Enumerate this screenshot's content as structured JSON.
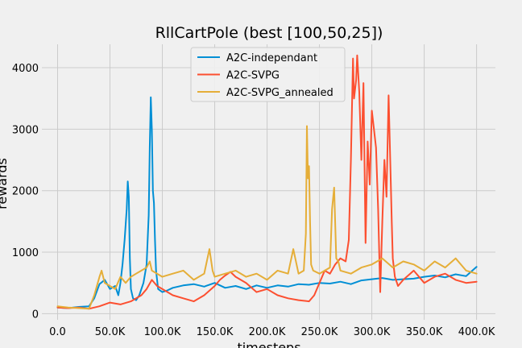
{
  "chart_data": {
    "type": "line",
    "title": "RllCartPole (best [100,50,25])",
    "xlabel": "timesteps",
    "ylabel": "rewards",
    "xlim": [
      -15000,
      418000
    ],
    "ylim": [
      -100,
      4380
    ],
    "x_ticks": [
      0,
      50000,
      100000,
      150000,
      200000,
      250000,
      300000,
      350000,
      400000
    ],
    "x_tick_labels": [
      "0.0",
      "50.0K",
      "100.0K",
      "150.0K",
      "200.0K",
      "250.0K",
      "300.0K",
      "350.0K",
      "400.0K"
    ],
    "y_ticks": [
      0,
      1000,
      2000,
      3000,
      4000
    ],
    "y_tick_labels": [
      "0",
      "1000",
      "2000",
      "3000",
      "4000"
    ],
    "grid": true,
    "legend_position": "top-center",
    "series": [
      {
        "name": "A2C-independant",
        "color": "#008fd5",
        "x": [
          0,
          10000,
          20000,
          30000,
          35000,
          40000,
          45000,
          50000,
          55000,
          58000,
          60000,
          62000,
          64000,
          66000,
          67000,
          68000,
          69000,
          70000,
          72000,
          75000,
          78000,
          82000,
          85000,
          87000,
          88000,
          89000,
          90000,
          91000,
          92000,
          93000,
          94000,
          96000,
          100000,
          105000,
          110000,
          120000,
          130000,
          140000,
          150000,
          160000,
          170000,
          180000,
          190000,
          200000,
          210000,
          220000,
          230000,
          240000,
          250000,
          260000,
          270000,
          280000,
          290000,
          300000,
          310000,
          320000,
          330000,
          340000,
          350000,
          360000,
          370000,
          380000,
          390000,
          400000
        ],
        "y": [
          100,
          90,
          110,
          120,
          250,
          480,
          550,
          400,
          450,
          300,
          500,
          800,
          1200,
          1700,
          2150,
          1900,
          900,
          400,
          250,
          220,
          300,
          500,
          800,
          1600,
          2700,
          3520,
          3000,
          2000,
          1800,
          1200,
          700,
          400,
          350,
          380,
          420,
          460,
          480,
          440,
          500,
          420,
          450,
          400,
          460,
          420,
          460,
          440,
          480,
          470,
          500,
          490,
          520,
          480,
          540,
          560,
          580,
          550,
          560,
          570,
          600,
          620,
          590,
          640,
          610,
          760
        ]
      },
      {
        "name": "A2C-SVPG",
        "color": "#fc4f30",
        "x": [
          0,
          10000,
          20000,
          30000,
          40000,
          50000,
          60000,
          70000,
          80000,
          85000,
          90000,
          95000,
          100000,
          110000,
          120000,
          130000,
          140000,
          150000,
          155000,
          160000,
          165000,
          170000,
          180000,
          190000,
          200000,
          210000,
          220000,
          230000,
          240000,
          245000,
          250000,
          255000,
          260000,
          265000,
          270000,
          275000,
          278000,
          280000,
          282000,
          283000,
          285000,
          286000,
          288000,
          290000,
          292000,
          294000,
          296000,
          298000,
          300000,
          302000,
          304000,
          306000,
          308000,
          310000,
          312000,
          314000,
          316000,
          318000,
          319000,
          320000,
          322000,
          325000,
          330000,
          340000,
          350000,
          360000,
          370000,
          380000,
          390000,
          400000
        ],
        "y": [
          100,
          90,
          100,
          80,
          120,
          180,
          150,
          200,
          300,
          400,
          550,
          450,
          400,
          300,
          250,
          200,
          300,
          450,
          550,
          620,
          680,
          600,
          500,
          350,
          400,
          300,
          250,
          220,
          200,
          300,
          500,
          700,
          650,
          800,
          900,
          850,
          1200,
          2500,
          4150,
          3500,
          3800,
          4200,
          3600,
          2500,
          3750,
          1150,
          2800,
          2100,
          3300,
          3000,
          2700,
          1700,
          350,
          1500,
          2500,
          1900,
          3550,
          2200,
          1500,
          900,
          600,
          450,
          550,
          700,
          500,
          600,
          650,
          550,
          500,
          520
        ]
      },
      {
        "name": "A2C-SVPG_annealed",
        "color": "#e5ae38",
        "x": [
          0,
          10000,
          20000,
          30000,
          35000,
          40000,
          42000,
          45000,
          50000,
          55000,
          60000,
          65000,
          70000,
          75000,
          80000,
          85000,
          88000,
          90000,
          95000,
          100000,
          110000,
          120000,
          130000,
          140000,
          145000,
          148000,
          150000,
          160000,
          170000,
          180000,
          190000,
          200000,
          210000,
          220000,
          225000,
          230000,
          235000,
          237000,
          238000,
          239000,
          240000,
          241000,
          242000,
          244000,
          250000,
          255000,
          260000,
          262000,
          264000,
          266000,
          268000,
          270000,
          280000,
          290000,
          300000,
          310000,
          320000,
          330000,
          340000,
          350000,
          360000,
          370000,
          380000,
          390000,
          400000
        ],
        "y": [
          120,
          100,
          90,
          80,
          300,
          600,
          700,
          500,
          450,
          400,
          600,
          500,
          600,
          650,
          700,
          750,
          850,
          700,
          650,
          600,
          650,
          700,
          550,
          650,
          1050,
          700,
          600,
          650,
          700,
          600,
          650,
          550,
          700,
          650,
          1050,
          650,
          700,
          1300,
          3050,
          2200,
          2400,
          1500,
          800,
          700,
          650,
          700,
          750,
          1700,
          2050,
          900,
          850,
          700,
          650,
          750,
          800,
          900,
          750,
          850,
          800,
          700,
          850,
          750,
          900,
          700,
          650
        ]
      }
    ]
  }
}
